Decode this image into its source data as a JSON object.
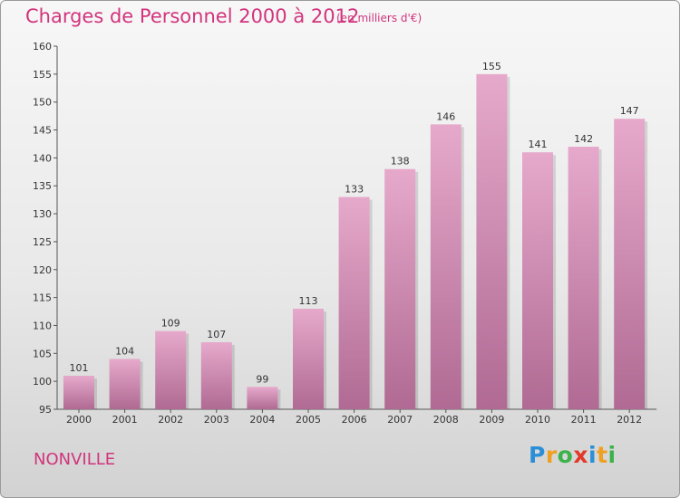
{
  "title": "Charges de Personnel 2000 à 2012",
  "subtitle": "(en milliers d'€)",
  "city": "NONVILLE",
  "logo": {
    "letters": [
      "P",
      "r",
      "o",
      "x",
      "i",
      "t",
      "i"
    ],
    "colors": [
      "#2a8fd6",
      "#f0a020",
      "#3cb34a",
      "#e23a2a",
      "#2a8fd6",
      "#f0a020",
      "#3cb34a"
    ]
  },
  "colors": {
    "bar_top": "#e6a9cb",
    "bar_bottom": "#b06a93",
    "text_accent": "#d2347d"
  },
  "chart_data": {
    "type": "bar",
    "categories": [
      "2000",
      "2001",
      "2002",
      "2003",
      "2004",
      "2005",
      "2006",
      "2007",
      "2008",
      "2009",
      "2010",
      "2011",
      "2012"
    ],
    "values": [
      101,
      104,
      109,
      107,
      99,
      113,
      133,
      138,
      146,
      155,
      141,
      142,
      147
    ],
    "ylim": [
      95,
      160
    ],
    "yticks": [
      95,
      100,
      105,
      110,
      115,
      120,
      125,
      130,
      135,
      140,
      145,
      150,
      155,
      160
    ],
    "grid": false,
    "legend": "none"
  }
}
